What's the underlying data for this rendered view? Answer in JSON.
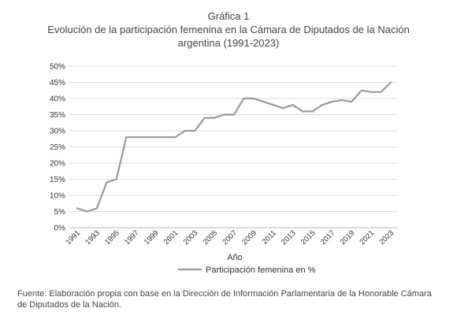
{
  "figure": {
    "kicker": "Gráfica 1",
    "title_line1": "Evolución de la participación femenina en la Cámara de Diputados de la Nación",
    "title_line2": "argentina (1991-2023)",
    "source": "Fuente: Elaboración propia con base en la Dirección de Información Parlamentaria de la Honorable Cámara de Diputados de la Nación."
  },
  "chart_data": {
    "type": "line",
    "xlabel": "Año",
    "ylabel": "",
    "ylim": [
      0,
      50
    ],
    "xlim": [
      1991,
      2023
    ],
    "grid": true,
    "legend_position": "bottom-center",
    "y_ticks": [
      "0%",
      "5%",
      "10%",
      "15%",
      "20%",
      "25%",
      "30%",
      "35%",
      "40%",
      "45%",
      "50%"
    ],
    "x_ticks": [
      "1991",
      "1993",
      "1995",
      "1997",
      "1999",
      "2001",
      "2003",
      "2005",
      "2007",
      "2009",
      "2011",
      "2013",
      "2015",
      "2017",
      "2019",
      "2021",
      "2023"
    ],
    "series": [
      {
        "name": "Participación femenina en %",
        "color": "#999999",
        "x": [
          1991,
          1992,
          1993,
          1994,
          1995,
          1996,
          1997,
          1998,
          1999,
          2000,
          2001,
          2002,
          2003,
          2004,
          2005,
          2006,
          2007,
          2008,
          2009,
          2010,
          2011,
          2012,
          2013,
          2014,
          2015,
          2016,
          2017,
          2018,
          2019,
          2020,
          2021,
          2022,
          2023
        ],
        "values": [
          6,
          5,
          6,
          14,
          15,
          28,
          28,
          28,
          28,
          28,
          28,
          30,
          30,
          34,
          34,
          35,
          35,
          40,
          40,
          39,
          38,
          37,
          38,
          36,
          36,
          38,
          39,
          39.5,
          39,
          42.5,
          42,
          42,
          45
        ]
      }
    ]
  }
}
